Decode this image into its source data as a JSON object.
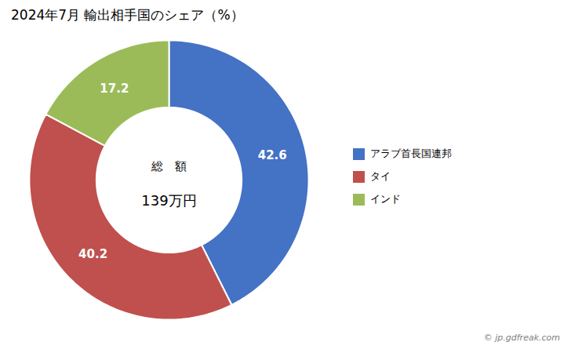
{
  "chart_data": {
    "type": "pie",
    "title": "2024年7月 輸出相手国のシェア（%）",
    "categories": [
      "アラブ首長国連邦",
      "タイ",
      "インド"
    ],
    "values": [
      42.6,
      40.2,
      17.2
    ],
    "colors": [
      "#4472C4",
      "#C0504D",
      "#9BBB59"
    ],
    "data_labels": true,
    "annotations": [
      "総　額",
      "139万円"
    ],
    "caption": "© jp.gdfreak.com",
    "legend": "right"
  }
}
